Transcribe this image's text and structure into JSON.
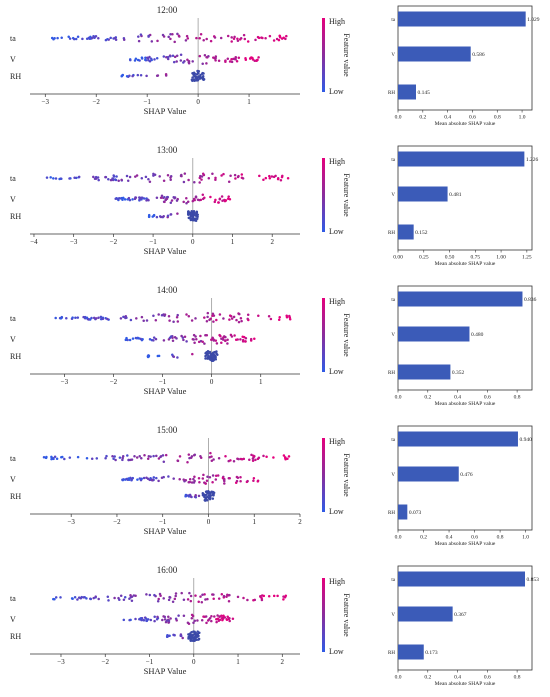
{
  "colorbar": {
    "high_label": "High",
    "low_label": "Low",
    "title": "Feature value"
  },
  "summary_xlabel": "SHAP Value",
  "bar_xlabel": "Mean absolute SHAP value",
  "colors": {
    "low": "#2f5be6",
    "mid": "#8a2d9c",
    "high": "#e5007d",
    "bar": "#3b5bb8",
    "axis_line": "#888888"
  },
  "chart_data": [
    {
      "type": "scatter",
      "title": "12:00",
      "xlabel": "SHAP Value",
      "features": [
        "ta",
        "V",
        "RH"
      ],
      "xlim": [
        -3.3,
        2.0
      ],
      "xticks": [
        -3,
        -2,
        -1,
        0,
        1
      ],
      "ranges": {
        "ta": [
          -2.9,
          1.8
        ],
        "V": [
          -1.4,
          1.2
        ],
        "RH": [
          -1.5,
          0.15
        ]
      },
      "colorbar": {
        "label": "Feature value",
        "high": "High",
        "low": "Low"
      }
    },
    {
      "type": "bar",
      "title": "12:00",
      "xlabel": "Mean absolute SHAP value",
      "categories": [
        "ta",
        "V",
        "RH"
      ],
      "values": [
        1.029,
        0.586,
        0.145
      ],
      "value_labels": [
        "1.029",
        "0.586",
        "0.145"
      ],
      "xlim": [
        0,
        1.08
      ],
      "xticks": [
        0.0,
        0.2,
        0.4,
        0.6,
        0.8,
        1.0
      ],
      "xtick_labels": [
        "0.0",
        "0.2",
        "0.4",
        "0.6",
        "0.8",
        "1.0"
      ]
    },
    {
      "type": "scatter",
      "title": "13:00",
      "xlabel": "SHAP Value",
      "features": [
        "ta",
        "V",
        "RH"
      ],
      "xlim": [
        -4.1,
        2.7
      ],
      "xticks": [
        -4,
        -3,
        -2,
        -1,
        0,
        1,
        2
      ],
      "ranges": {
        "ta": [
          -3.7,
          2.4
        ],
        "V": [
          -2.0,
          1.0
        ],
        "RH": [
          -1.1,
          0.2
        ]
      },
      "colorbar": {
        "label": "Feature value",
        "high": "High",
        "low": "Low"
      }
    },
    {
      "type": "bar",
      "title": "13:00",
      "xlabel": "Mean absolute SHAP value",
      "categories": [
        "ta",
        "V",
        "RH"
      ],
      "values": [
        1.226,
        0.481,
        0.152
      ],
      "value_labels": [
        "1.226",
        "0.481",
        "0.152"
      ],
      "xlim": [
        0,
        1.3
      ],
      "xticks": [
        0.0,
        0.25,
        0.5,
        0.75,
        1.0,
        1.25
      ],
      "xtick_labels": [
        "0.00",
        "0.25",
        "0.50",
        "0.75",
        "1.00",
        "1.25"
      ]
    },
    {
      "type": "scatter",
      "title": "14:00",
      "xlabel": "SHAP Value",
      "features": [
        "ta",
        "V",
        "RH"
      ],
      "xlim": [
        -3.7,
        1.8
      ],
      "xticks": [
        -3,
        -2,
        -1,
        0,
        1
      ],
      "ranges": {
        "ta": [
          -3.3,
          1.6
        ],
        "V": [
          -1.8,
          0.9
        ],
        "RH": [
          -1.3,
          0.3
        ]
      },
      "colorbar": {
        "label": "Feature value",
        "high": "High",
        "low": "Low"
      }
    },
    {
      "type": "bar",
      "title": "14:00",
      "xlabel": "Mean absolute SHAP value",
      "categories": [
        "ta",
        "V",
        "RH"
      ],
      "values": [
        0.836,
        0.48,
        0.352
      ],
      "value_labels": [
        "0.836",
        "0.480",
        "0.352"
      ],
      "xlim": [
        0,
        0.9
      ],
      "xticks": [
        0.0,
        0.2,
        0.4,
        0.6,
        0.8
      ],
      "xtick_labels": [
        "0.0",
        "0.2",
        "0.4",
        "0.6",
        "0.8"
      ]
    },
    {
      "type": "scatter",
      "title": "15:00",
      "xlabel": "SHAP Value",
      "features": [
        "ta",
        "V",
        "RH"
      ],
      "xlim": [
        -3.9,
        2.0
      ],
      "xticks": [
        -3,
        -2,
        -1,
        0,
        1,
        2
      ],
      "ranges": {
        "ta": [
          -3.6,
          1.8
        ],
        "V": [
          -1.9,
          1.1
        ],
        "RH": [
          -0.5,
          0.1
        ]
      },
      "colorbar": {
        "label": "Feature value",
        "high": "High",
        "low": "Low"
      }
    },
    {
      "type": "bar",
      "title": "15:00",
      "xlabel": "Mean absolute SHAP value",
      "categories": [
        "ta",
        "V",
        "RH"
      ],
      "values": [
        0.94,
        0.476,
        0.073
      ],
      "value_labels": [
        "0.940",
        "0.476",
        "0.073"
      ],
      "xlim": [
        0,
        1.05
      ],
      "xticks": [
        0.0,
        0.2,
        0.4,
        0.6,
        0.8,
        1.0
      ],
      "xtick_labels": [
        "0.0",
        "0.2",
        "0.4",
        "0.6",
        "0.8",
        "1.0"
      ]
    },
    {
      "type": "scatter",
      "title": "16:00",
      "xlabel": "SHAP Value",
      "features": [
        "ta",
        "V",
        "RH"
      ],
      "xlim": [
        -3.7,
        2.4
      ],
      "xticks": [
        -3,
        -2,
        -1,
        0,
        1,
        2
      ],
      "ranges": {
        "ta": [
          -3.2,
          2.2
        ],
        "V": [
          -1.6,
          1.0
        ],
        "RH": [
          -0.6,
          0.1
        ]
      },
      "colorbar": {
        "label": "Feature value",
        "high": "High",
        "low": "Low"
      }
    },
    {
      "type": "bar",
      "title": "16:00",
      "xlabel": "Mean absolute SHAP value",
      "categories": [
        "ta",
        "V",
        "RH"
      ],
      "values": [
        0.853,
        0.367,
        0.173
      ],
      "value_labels": [
        "0.853",
        "0.367",
        "0.173"
      ],
      "xlim": [
        0,
        0.9
      ],
      "xticks": [
        0.0,
        0.2,
        0.4,
        0.6,
        0.8
      ],
      "xtick_labels": [
        "0.0",
        "0.2",
        "0.4",
        "0.6",
        "0.8"
      ]
    }
  ]
}
